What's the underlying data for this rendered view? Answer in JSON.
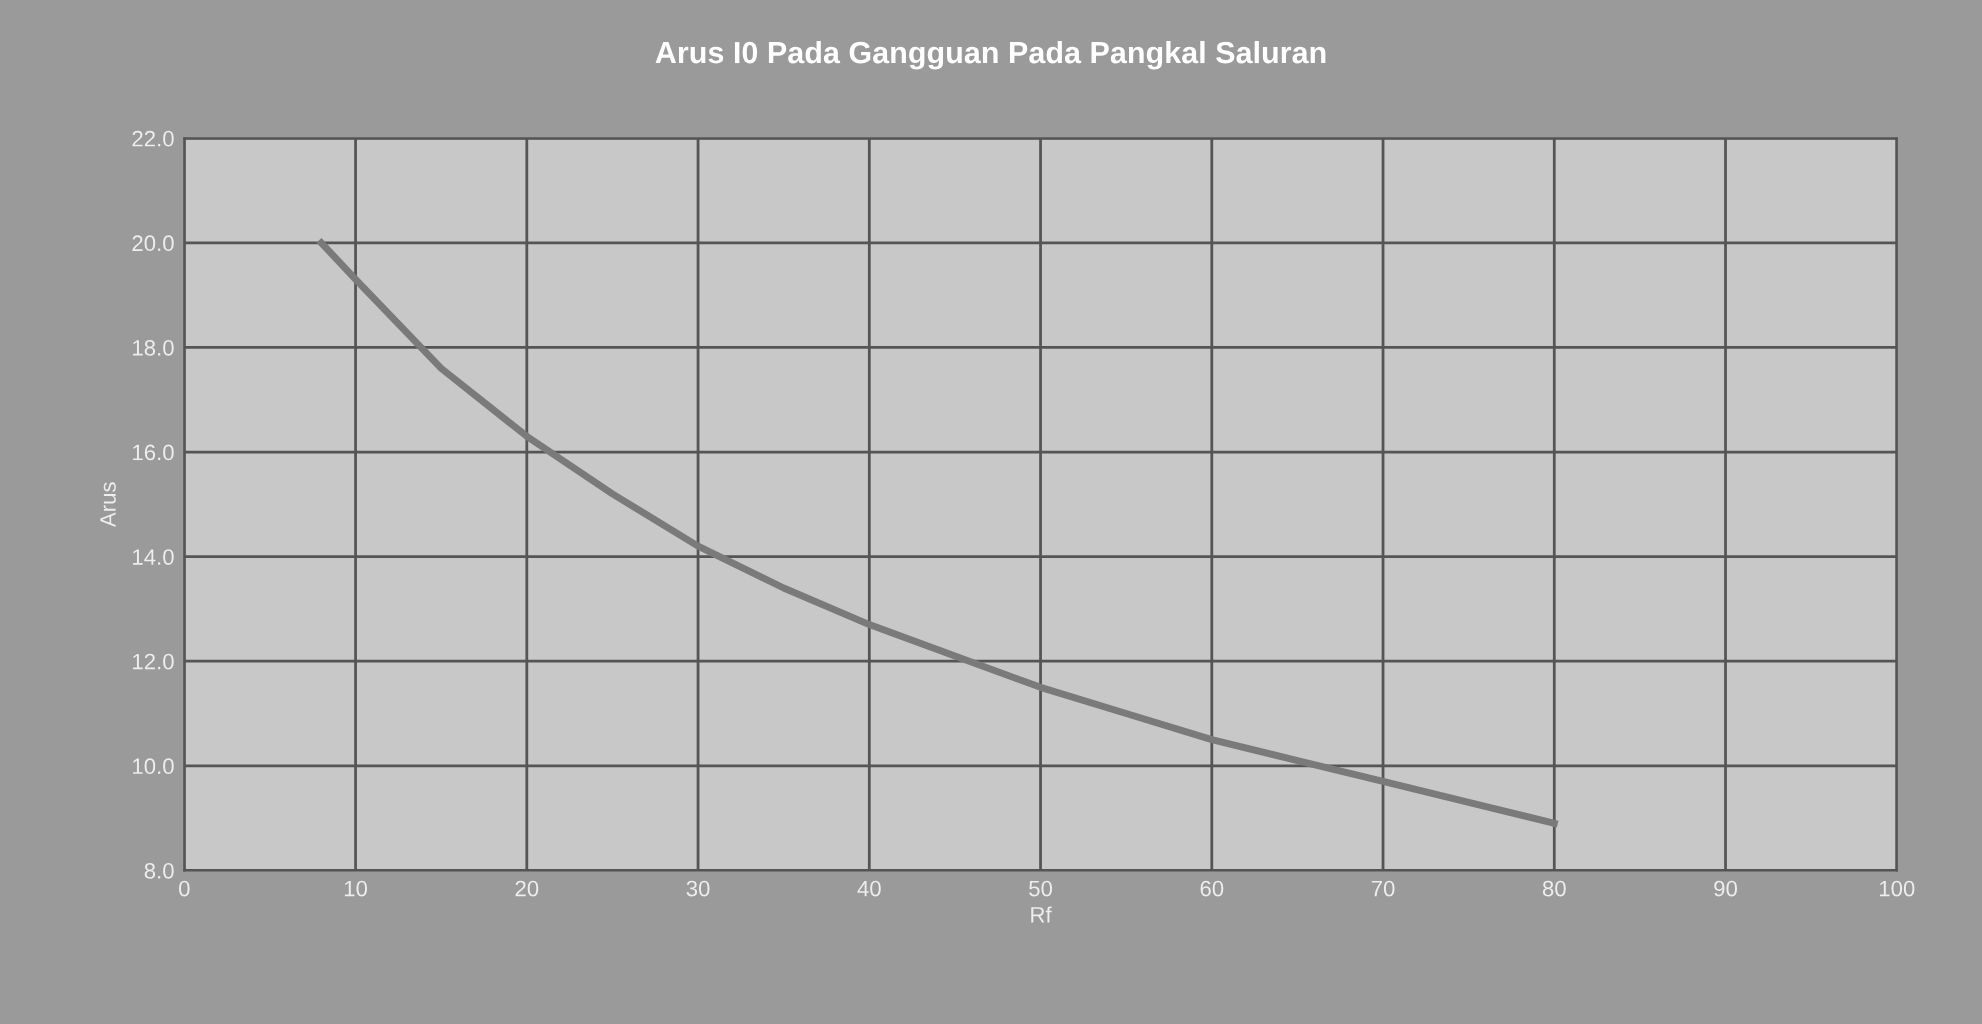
{
  "chart_data": {
    "type": "line",
    "title": "Arus I0 Pada Gangguan Pada Pangkal Saluran",
    "xlabel": "Rf",
    "ylabel": "Arus",
    "series": [
      {
        "color": "#7a7a7a",
        "x": [
          8,
          10,
          15,
          20,
          25,
          30,
          35,
          40,
          45,
          50,
          55,
          60,
          65,
          70,
          75,
          80
        ],
        "values": [
          20.0,
          19.3,
          17.6,
          16.3,
          15.2,
          14.2,
          13.4,
          12.7,
          12.1,
          11.5,
          11.0,
          10.5,
          10.1,
          9.7,
          9.3,
          8.9
        ]
      }
    ],
    "xlim": [
      0,
      100
    ],
    "xticks": [
      0,
      10,
      20,
      30,
      40,
      50,
      60,
      70,
      80,
      90,
      100
    ],
    "ylim": [
      8,
      22
    ],
    "yticks": [
      {
        "value": 8,
        "label": "8.0"
      },
      {
        "value": 10,
        "label": "10.0"
      },
      {
        "value": 12,
        "label": "12.0"
      },
      {
        "value": 14,
        "label": "14.0"
      },
      {
        "value": 16,
        "label": "16.0"
      },
      {
        "value": 18,
        "label": "18.0"
      },
      {
        "value": 20,
        "label": "20.0"
      },
      {
        "value": 22,
        "label": "22.0"
      }
    ],
    "grid": true,
    "marker": "none",
    "line_style": "solid"
  }
}
